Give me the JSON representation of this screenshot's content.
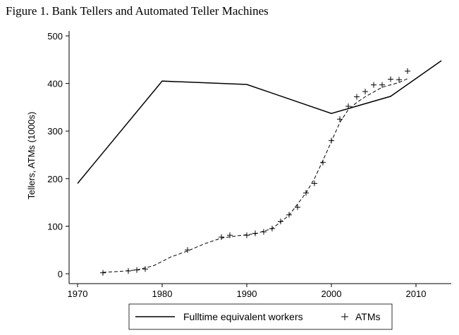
{
  "title": "Figure 1. Bank Tellers and Automated Teller Machines",
  "chart_data": {
    "type": "line",
    "title": "Figure 1. Bank Tellers and Automated Teller Machines",
    "xlabel": "",
    "ylabel": "Tellers, ATMs (1000s)",
    "xlim": [
      1970,
      2013
    ],
    "ylim": [
      0,
      500
    ],
    "x_ticks": [
      1970,
      1980,
      1990,
      2000,
      2010
    ],
    "y_ticks": [
      0,
      100,
      200,
      300,
      400,
      500
    ],
    "grid": false,
    "legend": "bottom",
    "series": [
      {
        "name": "Fulltime equivalent workers",
        "style": "solid-line",
        "x": [
          1970,
          1980,
          1990,
          2000,
          2007,
          2013
        ],
        "y": [
          190,
          405,
          398,
          337,
          373,
          448
        ]
      },
      {
        "name": "ATMs",
        "style": "plus-markers",
        "x": [
          1973,
          1976,
          1977,
          1978,
          1983,
          1987,
          1988,
          1990,
          1991,
          1992,
          1993,
          1994,
          1995,
          1996,
          1997,
          1998,
          1999,
          2000,
          2001,
          2002,
          2003,
          2004,
          2005,
          2006,
          2007,
          2008,
          2009
        ],
        "y": [
          2,
          6,
          8,
          10,
          50,
          77,
          81,
          81,
          85,
          88,
          95,
          110,
          124,
          140,
          170,
          190,
          234,
          280,
          325,
          352,
          372,
          383,
          397,
          397,
          409,
          408,
          426
        ]
      },
      {
        "name": "",
        "style": "dashed-trend",
        "x": [
          1973,
          1975,
          1977,
          1979,
          1981,
          1983,
          1985,
          1987,
          1989,
          1991,
          1993,
          1995,
          1997,
          1998,
          1999,
          2000,
          2001,
          2002,
          2003,
          2004,
          2006,
          2008,
          2009
        ],
        "y": [
          3,
          5,
          8,
          17,
          35,
          48,
          63,
          75,
          80,
          84,
          95,
          123,
          170,
          200,
          238,
          278,
          318,
          345,
          360,
          372,
          392,
          402,
          410
        ]
      }
    ]
  }
}
